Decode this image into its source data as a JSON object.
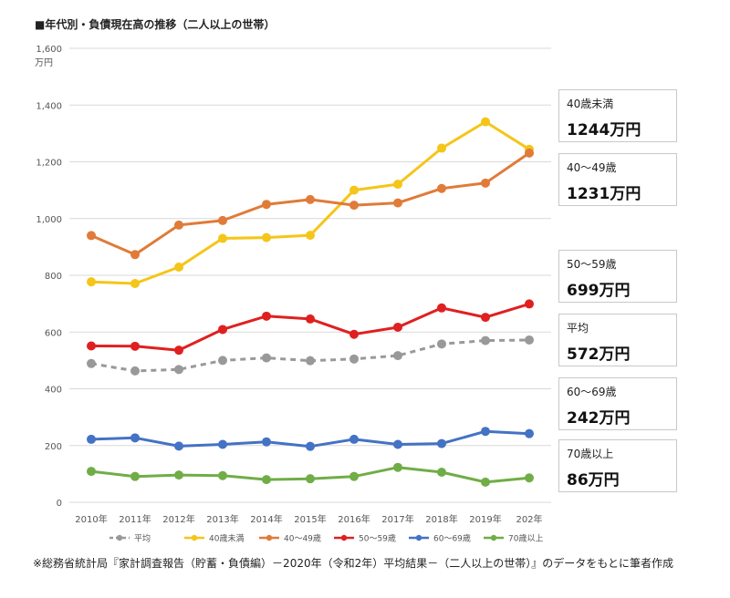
{
  "title": "■年代別・負債現在高の推移（二人以上の世帯）",
  "source": "※総務省統計局『家計調査報告（貯蓄・負債編）－2020年（令和2年）平均結果－（二人以上の世帯）』のデータをもとに筆者作成",
  "callouts": [
    {
      "label": "40歳未満",
      "value": "1244万円"
    },
    {
      "label": "40～49歳",
      "value": "1231万円"
    },
    {
      "label": "50～59歳",
      "value": "699万円"
    },
    {
      "label": "平均",
      "value": "572万円"
    },
    {
      "label": "60～69歳",
      "value": "242万円"
    },
    {
      "label": "70歳以上",
      "value": "86万円"
    }
  ],
  "chart_data": {
    "type": "line",
    "ylabel": "万円",
    "ylim": [
      0,
      1600
    ],
    "yticks": [
      0,
      200,
      400,
      600,
      800,
      1000,
      1200,
      1400,
      1600
    ],
    "ytick_labels": [
      "0",
      "200",
      "400",
      "600",
      "800",
      "1,000",
      "1,200",
      "1,400",
      "1,600"
    ],
    "categories": [
      "2010年",
      "2011年",
      "2012年",
      "2013年",
      "2014年",
      "2015年",
      "2016年",
      "2017年",
      "2018年",
      "2019年",
      "202年"
    ],
    "grid": "horizontal",
    "legend_position": "bottom",
    "series": [
      {
        "name": "平均",
        "color": "#999999",
        "dashed": true,
        "values": [
          489,
          463,
          468,
          500,
          509,
          499,
          505,
          517,
          558,
          570,
          572
        ]
      },
      {
        "name": "40歳未満",
        "color": "#f5c518",
        "dashed": false,
        "values": [
          777,
          771,
          829,
          930,
          933,
          941,
          1100,
          1121,
          1248,
          1341,
          1244
        ]
      },
      {
        "name": "40～49歳",
        "color": "#e07b39",
        "dashed": false,
        "values": [
          940,
          873,
          977,
          993,
          1050,
          1067,
          1047,
          1055,
          1106,
          1125,
          1231
        ]
      },
      {
        "name": "50～59歳",
        "color": "#e02020",
        "dashed": false,
        "values": [
          551,
          550,
          536,
          609,
          656,
          646,
          592,
          617,
          685,
          652,
          699
        ]
      },
      {
        "name": "60～69歳",
        "color": "#4472c4",
        "dashed": false,
        "values": [
          222,
          227,
          198,
          204,
          213,
          197,
          222,
          204,
          207,
          250,
          242
        ]
      },
      {
        "name": "70歳以上",
        "color": "#70ad47",
        "dashed": false,
        "values": [
          109,
          91,
          96,
          94,
          80,
          83,
          91,
          123,
          106,
          71,
          86
        ]
      }
    ]
  }
}
